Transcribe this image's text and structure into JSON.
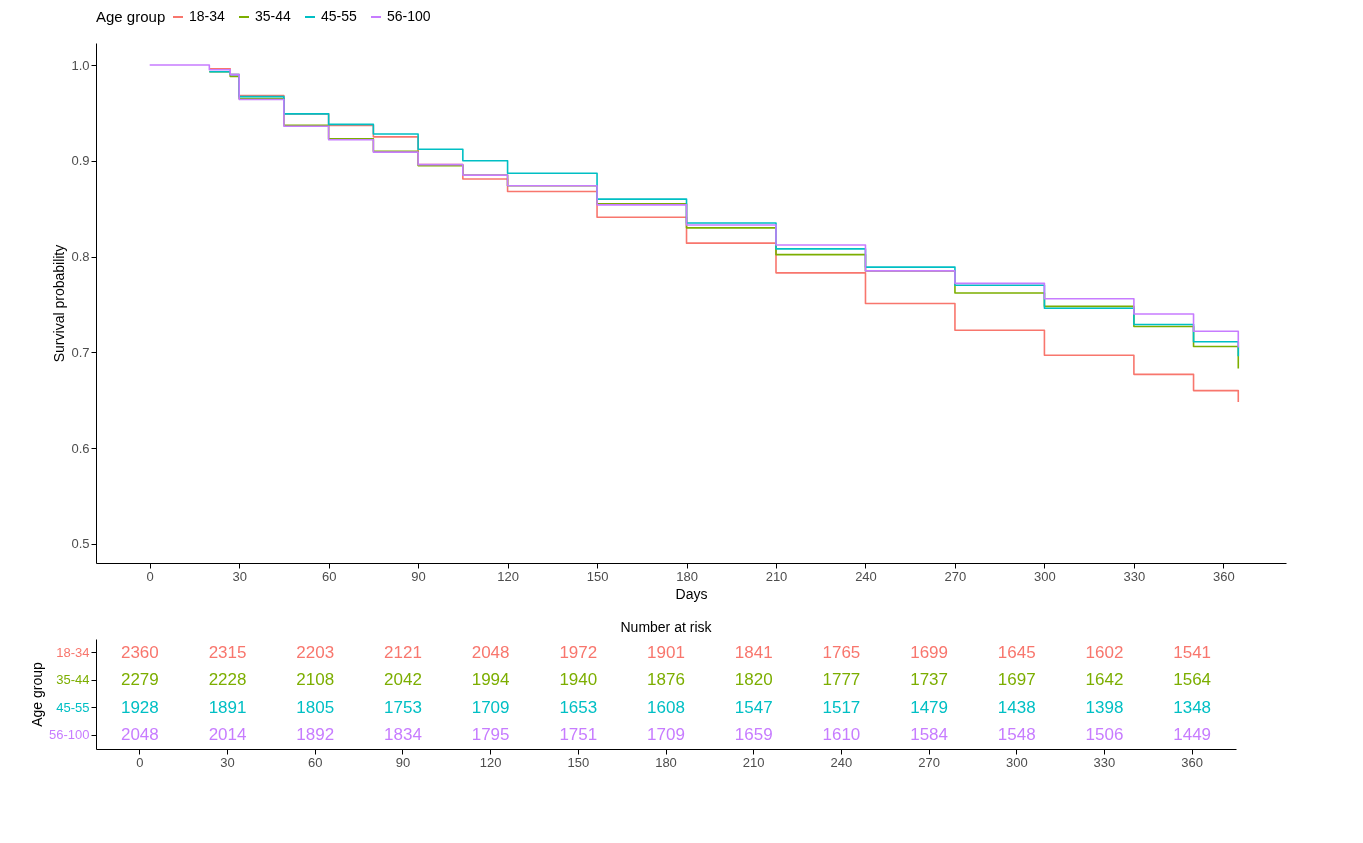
{
  "chart_data": [
    {
      "type": "step",
      "xlabel": "Days",
      "ylabel": "Survival probability",
      "legend_title": "Age group",
      "legend": "top",
      "grid": false,
      "x": [
        0,
        12,
        20,
        27,
        30,
        45,
        60,
        75,
        90,
        105,
        120,
        150,
        180,
        210,
        240,
        270,
        300,
        330,
        350,
        365
      ],
      "xlim": [
        -18,
        381
      ],
      "xticks": [
        0,
        30,
        60,
        90,
        120,
        150,
        180,
        210,
        240,
        270,
        300,
        330,
        360
      ],
      "ylim": [
        0.48,
        1.023
      ],
      "yticks": [
        {
          "value": 0.5,
          "label": "0.5"
        },
        {
          "value": 0.6,
          "label": "0.6"
        },
        {
          "value": 0.7,
          "label": "0.7"
        },
        {
          "value": 0.8,
          "label": "0.8"
        },
        {
          "value": 0.9,
          "label": "0.9"
        },
        {
          "value": 1,
          "label": "1.0"
        }
      ],
      "series": [
        {
          "name": "18-34",
          "color": "#f8766d",
          "values": [
            null,
            null,
            0.996,
            0.99,
            0.968,
            0.949,
            0.937,
            0.925,
            0.896,
            0.881,
            0.868,
            0.841,
            0.814,
            0.783,
            0.751,
            0.723,
            0.697,
            0.677,
            0.66,
            0.648
          ]
        },
        {
          "name": "35-44",
          "color": "#7cae00",
          "values": [
            null,
            null,
            0.993,
            0.988,
            0.965,
            0.937,
            0.923,
            0.91,
            0.895,
            0.885,
            0.874,
            0.855,
            0.83,
            0.802,
            0.785,
            0.762,
            0.748,
            0.727,
            0.706,
            0.683
          ]
        },
        {
          "name": "45-55",
          "color": "#00bfc4",
          "values": [
            null,
            null,
            0.993,
            0.99,
            0.967,
            0.949,
            0.938,
            0.928,
            0.912,
            0.9,
            0.887,
            0.86,
            0.835,
            0.808,
            0.789,
            0.77,
            0.746,
            0.729,
            0.711,
            0.696
          ]
        },
        {
          "name": "56-100",
          "color": "#c77cff",
          "values": [
            1.0,
            1.0,
            0.995,
            0.99,
            0.964,
            0.936,
            0.922,
            0.909,
            0.896,
            0.885,
            0.874,
            0.854,
            0.833,
            0.812,
            0.785,
            0.772,
            0.756,
            0.74,
            0.722,
            0.705
          ]
        }
      ]
    },
    {
      "type": "heatmap",
      "title": "Number at risk",
      "data_labels": true,
      "ylabel": "Age group",
      "categories": [
        "0",
        "30",
        "60",
        "90",
        "120",
        "150",
        "180",
        "210",
        "240",
        "270",
        "300",
        "330",
        "360"
      ],
      "y_categories": [
        "18-34",
        "35-44",
        "45-55",
        "56-100"
      ],
      "cells": [
        [
          2360,
          2315,
          2203,
          2121,
          2048,
          1972,
          1901,
          1841,
          1765,
          1699,
          1645,
          1602,
          1541
        ],
        [
          2279,
          2228,
          2108,
          2042,
          1994,
          1940,
          1876,
          1820,
          1777,
          1737,
          1697,
          1642,
          1564
        ],
        [
          1928,
          1891,
          1805,
          1753,
          1709,
          1653,
          1608,
          1547,
          1517,
          1479,
          1438,
          1398,
          1348
        ],
        [
          2048,
          2014,
          1892,
          1834,
          1795,
          1751,
          1709,
          1659,
          1610,
          1584,
          1548,
          1506,
          1449
        ]
      ]
    }
  ]
}
